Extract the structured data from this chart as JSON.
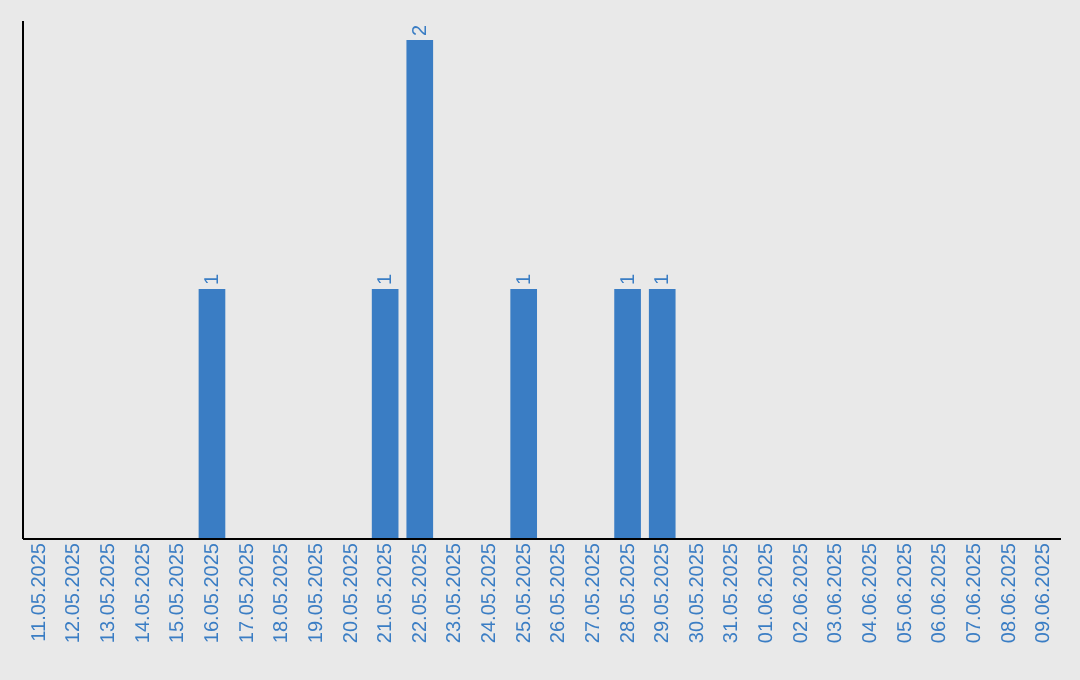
{
  "chart_data": {
    "type": "bar",
    "categories": [
      "11.05.2025",
      "12.05.2025",
      "13.05.2025",
      "14.05.2025",
      "15.05.2025",
      "16.05.2025",
      "17.05.2025",
      "18.05.2025",
      "19.05.2025",
      "20.05.2025",
      "21.05.2025",
      "22.05.2025",
      "23.05.2025",
      "24.05.2025",
      "25.05.2025",
      "26.05.2025",
      "27.05.2025",
      "28.05.2025",
      "29.05.2025",
      "30.05.2025",
      "31.05.2025",
      "01.06.2025",
      "02.06.2025",
      "03.06.2025",
      "04.06.2025",
      "05.06.2025",
      "06.06.2025",
      "07.06.2025",
      "08.06.2025",
      "09.06.2025"
    ],
    "values": [
      0,
      0,
      0,
      0,
      0,
      1,
      0,
      0,
      0,
      0,
      1,
      2,
      0,
      0,
      1,
      0,
      0,
      1,
      1,
      0,
      0,
      0,
      0,
      0,
      0,
      0,
      0,
      0,
      0,
      0
    ],
    "value_labels": [
      null,
      null,
      null,
      null,
      null,
      "1",
      null,
      null,
      null,
      null,
      "1",
      "2",
      null,
      null,
      "1",
      null,
      null,
      "1",
      "1",
      null,
      null,
      null,
      null,
      null,
      null,
      null,
      null,
      null,
      null,
      null
    ],
    "color": "#3a7dc4",
    "ylim": [
      0,
      2.08
    ],
    "tick_labels": "x"
  }
}
